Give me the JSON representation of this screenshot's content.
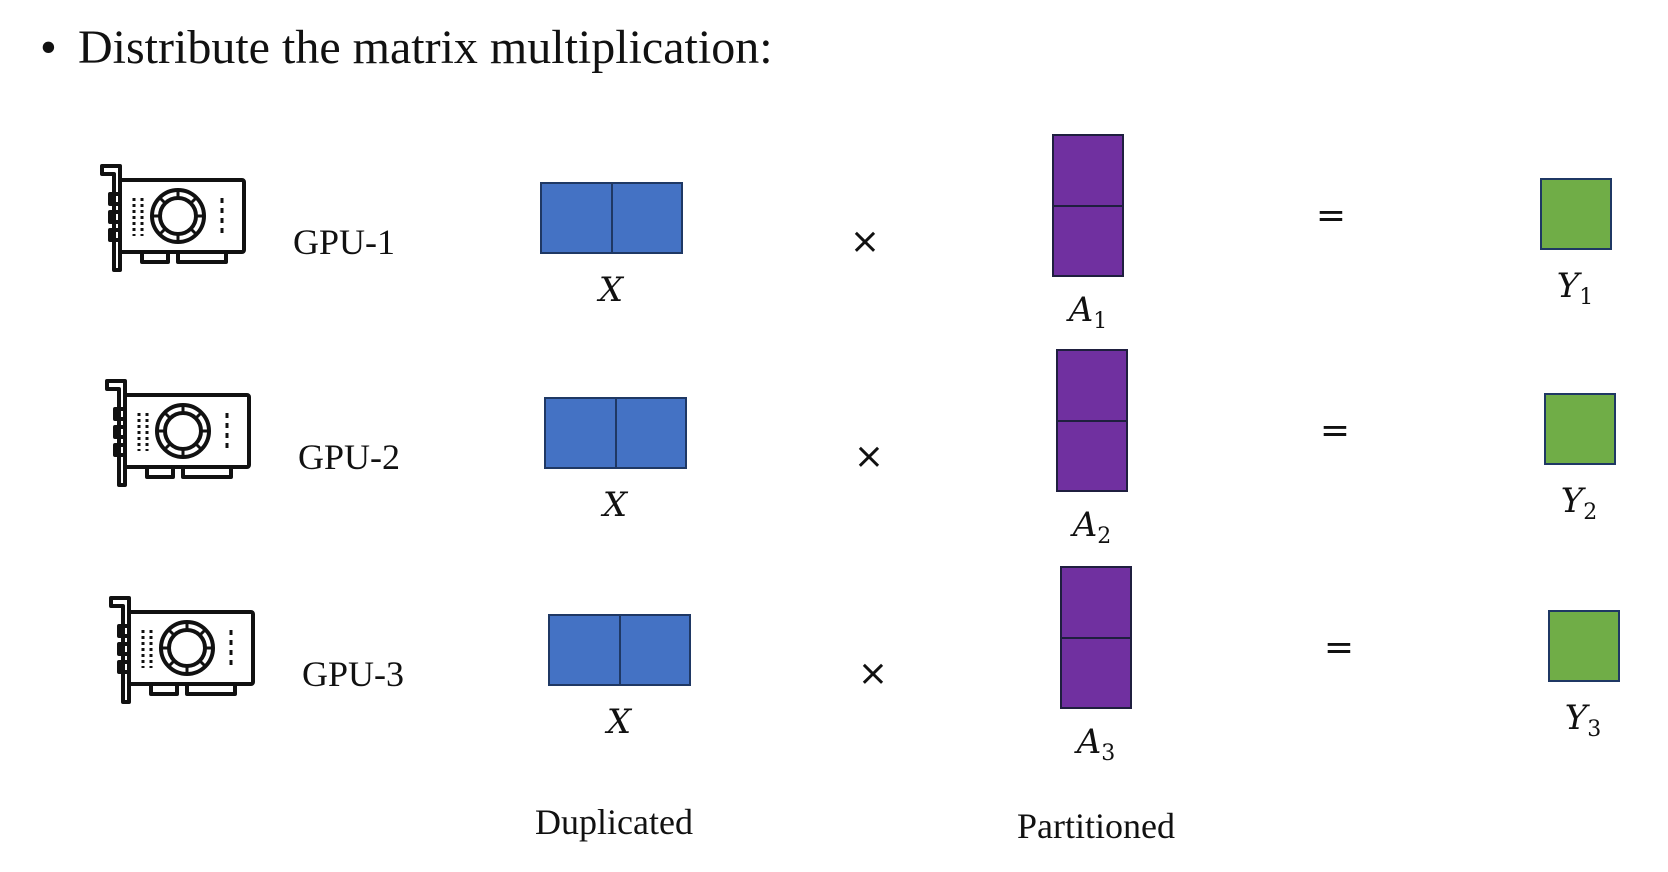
{
  "title": {
    "bullet": "•",
    "text": "Distribute the matrix multiplication:"
  },
  "rows": [
    {
      "gpu_label": "GPU-1",
      "x_label": "X",
      "times": "×",
      "a_label": "A",
      "a_sub": "1",
      "equals": "=",
      "y_label": "Y",
      "y_sub": "1"
    },
    {
      "gpu_label": "GPU-2",
      "x_label": "X",
      "times": "×",
      "a_label": "A",
      "a_sub": "2",
      "equals": "=",
      "y_label": "Y",
      "y_sub": "2"
    },
    {
      "gpu_label": "GPU-3",
      "x_label": "X",
      "times": "×",
      "a_label": "A",
      "a_sub": "3",
      "equals": "=",
      "y_label": "Y",
      "y_sub": "3"
    }
  ],
  "captions": {
    "duplicated": "Duplicated",
    "partitioned": "Partitioned"
  },
  "colors": {
    "x_matrix": "#4472c4",
    "a_matrix": "#7030a0",
    "y_matrix": "#70ad47"
  },
  "icons": {
    "gpu": "gpu-card-icon"
  }
}
